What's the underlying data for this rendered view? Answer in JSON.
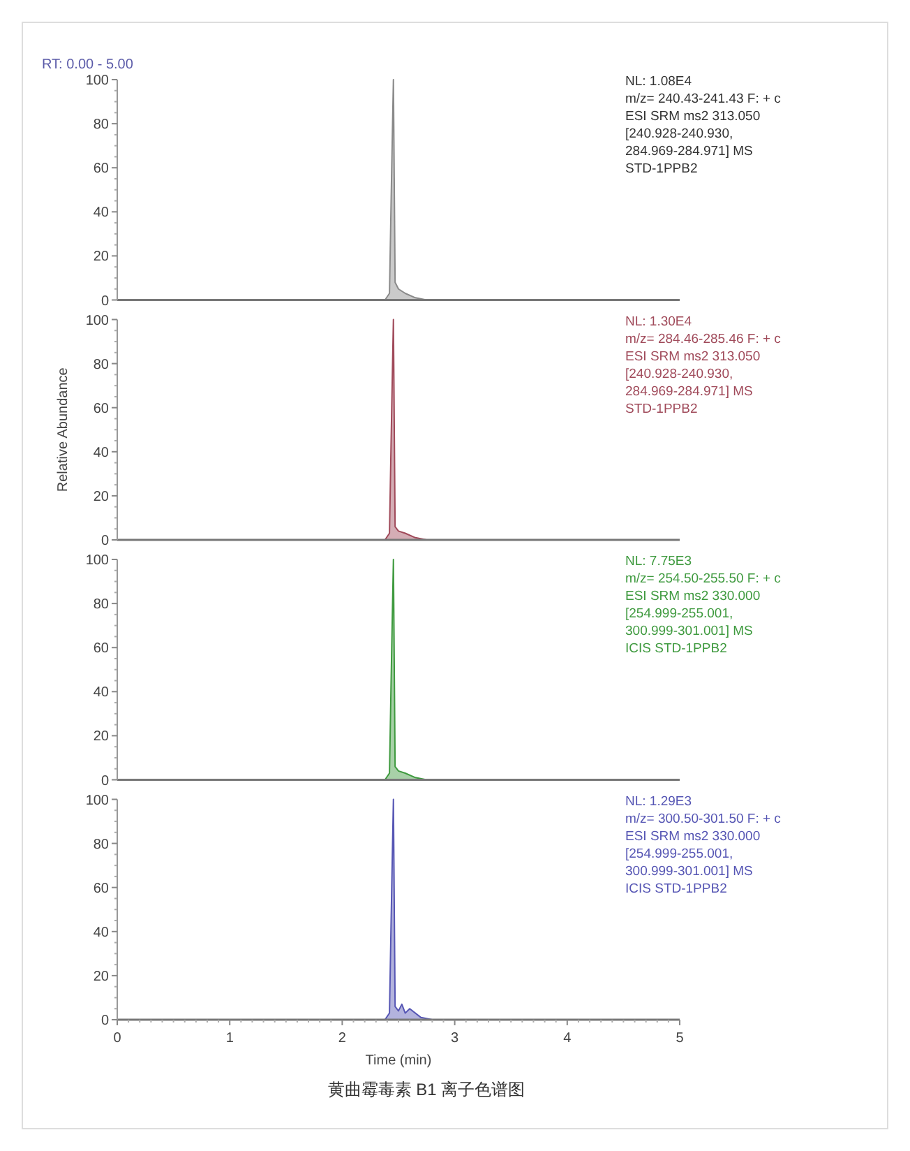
{
  "chart_data": [
    {
      "type": "area",
      "title": "RT: 0.00 - 5.00",
      "xlim": [
        0,
        5
      ],
      "ylim": [
        0,
        100
      ],
      "yticks": [
        0,
        20,
        40,
        60,
        80,
        100
      ],
      "tick_labels": "y",
      "series": [
        {
          "color": "#8a8a8a",
          "x": [
            0,
            2.38,
            2.42,
            2.44,
            2.455,
            2.47,
            2.5,
            2.56,
            2.65,
            2.75,
            5
          ],
          "values": [
            0,
            0,
            3,
            60,
            100,
            8,
            5,
            3,
            1,
            0,
            0
          ]
        }
      ],
      "annotations": [
        "NL: 1.08E4",
        "m/z= 240.43-241.43 F: + c",
        "ESI SRM ms2 313.050",
        "[240.928-240.930,",
        "284.969-284.971]  MS",
        "STD-1PPB2"
      ]
    },
    {
      "type": "area",
      "ylabel": "Relative Abundance",
      "xlim": [
        0,
        5
      ],
      "ylim": [
        0,
        100
      ],
      "yticks": [
        0,
        20,
        40,
        60,
        80,
        100
      ],
      "tick_labels": "y",
      "series": [
        {
          "color": "#a04a5a",
          "x": [
            0,
            2.38,
            2.42,
            2.44,
            2.455,
            2.47,
            2.5,
            2.56,
            2.65,
            2.75,
            5
          ],
          "values": [
            0,
            0,
            3,
            60,
            100,
            6,
            4,
            3,
            1,
            0,
            0
          ]
        }
      ],
      "annotations": [
        "NL: 1.30E4",
        "m/z= 284.46-285.46 F: + c",
        "ESI SRM ms2 313.050",
        "[240.928-240.930,",
        "284.969-284.971]  MS",
        "STD-1PPB2"
      ]
    },
    {
      "type": "area",
      "xlim": [
        0,
        5
      ],
      "ylim": [
        0,
        100
      ],
      "yticks": [
        0,
        20,
        40,
        60,
        80,
        100
      ],
      "tick_labels": "y",
      "series": [
        {
          "color": "#3f9a3f",
          "x": [
            0,
            2.38,
            2.42,
            2.44,
            2.455,
            2.47,
            2.5,
            2.56,
            2.65,
            2.75,
            5
          ],
          "values": [
            0,
            0,
            3,
            60,
            100,
            6,
            4,
            3,
            1,
            0,
            0
          ]
        }
      ],
      "annotations": [
        "NL: 7.75E3",
        "m/z= 254.50-255.50 F: + c",
        "ESI SRM ms2 330.000",
        "[254.999-255.001,",
        "300.999-301.001]  MS",
        "ICIS STD-1PPB2"
      ]
    },
    {
      "type": "area",
      "xlabel": "Time (min)",
      "xlim": [
        0,
        5
      ],
      "xticks": [
        0,
        1,
        2,
        3,
        4,
        5
      ],
      "ylim": [
        0,
        100
      ],
      "yticks": [
        0,
        20,
        40,
        60,
        80,
        100
      ],
      "series": [
        {
          "color": "#5656b4",
          "x": [
            0,
            2.38,
            2.42,
            2.44,
            2.455,
            2.47,
            2.5,
            2.53,
            2.56,
            2.6,
            2.7,
            2.8,
            5
          ],
          "values": [
            0,
            0,
            3,
            60,
            100,
            6,
            4,
            7,
            3,
            5,
            1,
            0,
            0
          ]
        }
      ],
      "annotations": [
        "NL: 1.29E3",
        "m/z= 300.50-301.50 F: + c",
        "ESI SRM ms2 330.000",
        "[254.999-255.001,",
        "300.999-301.001]  MS",
        "ICIS STD-1PPB2"
      ]
    },
    {
      "type": "other",
      "title": "黄曲霉毒素 B1 离子色谱图"
    }
  ]
}
